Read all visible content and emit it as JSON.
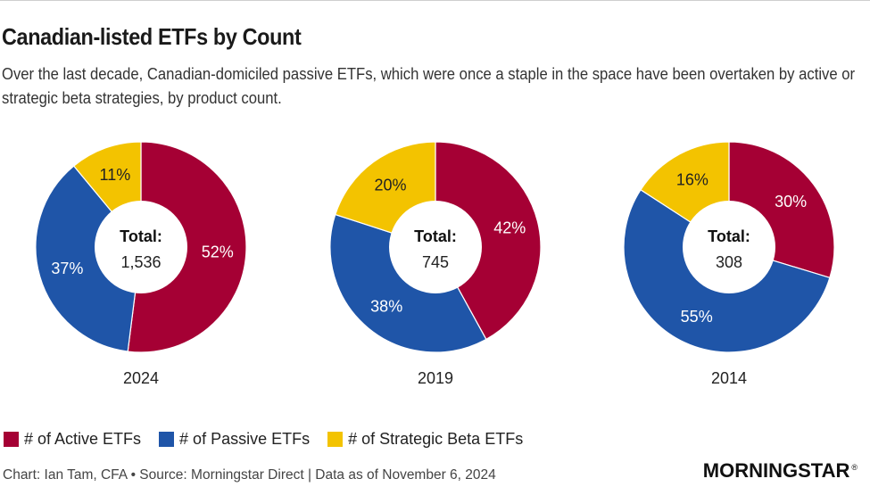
{
  "header": {
    "title": "Canadian-listed ETFs by Count",
    "subtitle": "Over the last decade, Canadian-domiciled passive ETFs, which were once a staple in the space have been overtaken by active or strategic beta strategies, by product count."
  },
  "colors": {
    "active": "#a50034",
    "passive": "#1f55a8",
    "strategic": "#f3c300"
  },
  "chart_data": {
    "type": "pie",
    "variant": "donut",
    "title": "Canadian-listed ETFs by Count",
    "categories": [
      "# of Active ETFs",
      "# of Passive ETFs",
      "# of Strategic Beta ETFs"
    ],
    "total_label": "Total:",
    "charts": [
      {
        "year": "2024",
        "total": "1,536",
        "values": [
          52,
          37,
          11
        ],
        "labels": [
          "52%",
          "37%",
          "11%"
        ]
      },
      {
        "year": "2019",
        "total": "745",
        "values": [
          42,
          38,
          20
        ],
        "labels": [
          "42%",
          "38%",
          "20%"
        ]
      },
      {
        "year": "2014",
        "total": "308",
        "values": [
          30,
          55,
          16
        ],
        "labels": [
          "30%",
          "55%",
          "16%"
        ]
      }
    ],
    "legend_position": "bottom-left"
  },
  "legend": {
    "items": [
      {
        "label": "# of Active ETFs",
        "color": "#a50034"
      },
      {
        "label": "# of Passive ETFs",
        "color": "#1f55a8"
      },
      {
        "label": "# of Strategic Beta ETFs",
        "color": "#f3c300"
      }
    ]
  },
  "footer": {
    "source": "Chart: Ian Tam, CFA • Source: Morningstar Direct | Data as of November 6, 2024"
  },
  "logo": {
    "text": "MORNINGSTAR",
    "mark": "®"
  }
}
